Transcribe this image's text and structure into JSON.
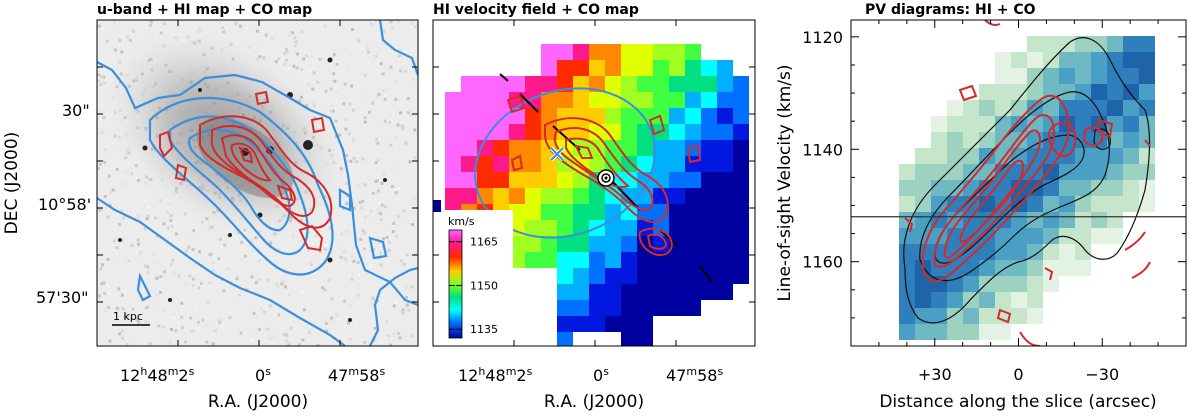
{
  "chart_data": [
    {
      "type": "heatmap",
      "title": "u-band + HI map + CO map",
      "xlabel": "R.A. (J2000)",
      "ylabel": "DEC (J2000)",
      "x_ticks": [
        {
          "h": "12",
          "m": "48",
          "s": "2"
        },
        {
          "s": "0"
        },
        {
          "m": "47",
          "s": "58"
        }
      ],
      "y_ticks": [
        {
          "text": "30\""
        },
        {
          "text": "10°58'"
        },
        {
          "text": "57'30\""
        }
      ],
      "scale_bar": "1 kpc",
      "layers": [
        "u-band image (greyscale)",
        "HI map contours (blue)",
        "CO map contours (red)"
      ]
    },
    {
      "type": "heatmap",
      "title": "HI velocity field + CO map",
      "xlabel": "R.A. (J2000)",
      "x_ticks": [
        {
          "h": "12",
          "m": "48",
          "s": "2"
        },
        {
          "s": "0"
        },
        {
          "m": "47",
          "s": "58"
        }
      ],
      "colorbar": {
        "unit": "km/s",
        "ticks": [
          "1165",
          "1150",
          "1135"
        ],
        "range": [
          1132,
          1169
        ]
      },
      "layers": [
        "HI velocity field (colour)",
        "CO map contours (red)",
        "beam ellipse (blue)",
        "slice line (dashed)"
      ]
    },
    {
      "type": "heatmap",
      "title": "PV diagrams: HI + CO",
      "xlabel": "Distance along the slice (arcsec)",
      "ylabel": "Line-of-sight Velocity (km/s)",
      "x_ticks": [
        "+30",
        "0",
        "−30"
      ],
      "y_ticks": [
        "1120",
        "1140",
        "1160"
      ],
      "xlim": [
        60,
        -60
      ],
      "ylim": [
        1175,
        1117
      ],
      "systemic_velocity": 1152,
      "layers": [
        "HI PV (teal/green colour, black contours)",
        "CO PV contours (red)"
      ]
    }
  ]
}
